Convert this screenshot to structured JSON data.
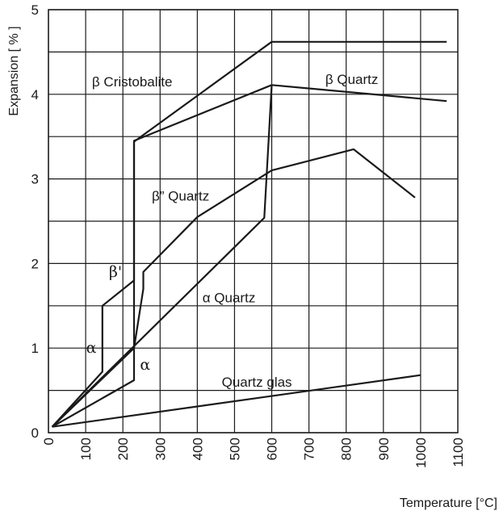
{
  "chart_data": {
    "type": "line",
    "xlabel": "Temperature [°C]",
    "ylabel": "Expansion [ % ]",
    "xlim": [
      0,
      1100
    ],
    "ylim": [
      0,
      5
    ],
    "x_ticks": [
      "0",
      "100",
      "200",
      "300",
      "400",
      "500",
      "600",
      "700",
      "800",
      "900",
      "1000",
      "1100"
    ],
    "y_ticks": [
      "0",
      "1",
      "2",
      "3",
      "4",
      "5"
    ],
    "grid": true,
    "series": [
      {
        "x": [
          10,
          145,
          145,
          230,
          230,
          600,
          1070
        ],
        "y": [
          0.07,
          0.72,
          1.5,
          1.8,
          3.44,
          4.62,
          4.62
        ]
      },
      {
        "x": [
          10,
          230,
          230,
          600,
          1070
        ],
        "y": [
          0.07,
          0.62,
          3.45,
          4.11,
          3.92
        ]
      },
      {
        "x": [
          10,
          230,
          255,
          255,
          400,
          600,
          820,
          985
        ],
        "y": [
          0.07,
          1.0,
          1.7,
          1.9,
          2.55,
          3.1,
          3.35,
          2.78
        ]
      },
      {
        "x": [
          10,
          580,
          600
        ],
        "y": [
          0.07,
          2.54,
          4.11
        ]
      },
      {
        "x": [
          10,
          1000
        ],
        "y": [
          0.07,
          0.68
        ]
      }
    ],
    "annotations": [
      {
        "text": "β  Cristobalite",
        "x": 225,
        "y": 4.15
      },
      {
        "text": "β  Quartz",
        "x": 815,
        "y": 4.18
      },
      {
        "text": "β” Quartz",
        "x": 355,
        "y": 2.8
      },
      {
        "text": "β'",
        "x": 180,
        "y": 1.9
      },
      {
        "text": "α  Quartz",
        "x": 485,
        "y": 1.6
      },
      {
        "text": "α",
        "x": 115,
        "y": 1.0
      },
      {
        "text": "α",
        "x": 260,
        "y": 0.8
      },
      {
        "text": "Quartz glas",
        "x": 560,
        "y": 0.6
      }
    ]
  }
}
